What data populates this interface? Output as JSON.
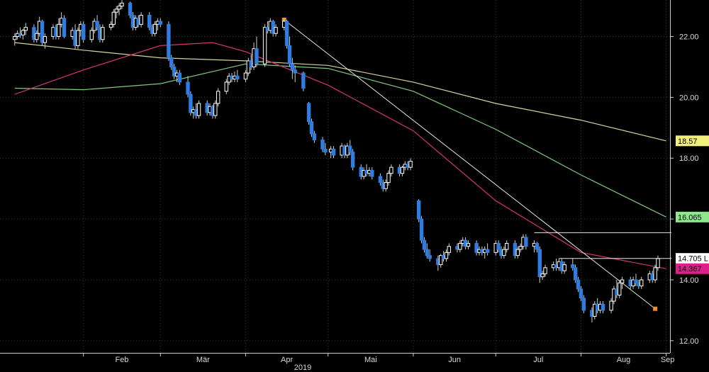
{
  "chart_data": {
    "type": "candlestick",
    "title": "",
    "xlabel": "",
    "ylabel": "",
    "year_label": "2019",
    "ylim": [
      11.6,
      23.2
    ],
    "y_ticks": [
      12.0,
      14.0,
      16.0,
      18.0,
      20.0,
      22.0
    ],
    "y_tick_labels": [
      "12.00",
      "14.00",
      "16.00",
      "18.00",
      "20.00",
      "22.00"
    ],
    "x_tick_labels": [
      "Feb",
      "Mär",
      "Apr",
      "Mai",
      "Jun",
      "Jul",
      "Aug",
      "Sep"
    ],
    "x_ticks": [
      "2019-02-01",
      "2019-03-01",
      "2019-04-01",
      "2019-05-01",
      "2019-06-01",
      "2019-07-01",
      "2019-08-01",
      "2019-09-01"
    ],
    "grid": true,
    "colors": {
      "background": "#000000",
      "grid": "#3a3a3a",
      "up_candle": "#ffffff",
      "down_candle": "#2f7de1",
      "ma_short": "#d6337a",
      "ma_mid": "#7fc97f",
      "ma_long": "#d9d39a",
      "trendline": "#e8e8d8",
      "marker": "#f28c28"
    },
    "price_tags": [
      {
        "label": "18.57",
        "value": 18.57,
        "bg": "#f2f07a"
      },
      {
        "label": "16.065",
        "value": 16.065,
        "bg": "#8ee88e"
      },
      {
        "label": "14.705 L",
        "value": 14.705,
        "bg": "#ffffff"
      },
      {
        "label": "14.367",
        "value": 14.367,
        "bg": "#e0208a"
      }
    ],
    "horizontal_lines": [
      15.55,
      14.705
    ],
    "trendline": {
      "start": [
        "2019-04-15",
        22.55
      ],
      "end": [
        "2019-08-28",
        13.05
      ]
    },
    "markers": [
      {
        "date": "2019-04-15",
        "value": 22.55
      },
      {
        "date": "2019-08-28",
        "value": 13.05
      }
    ],
    "series": [
      {
        "name": "",
        "kind": "ma_long",
        "dates": [
          "2019-01-07",
          "2019-02-01",
          "2019-03-01",
          "2019-04-01",
          "2019-05-01",
          "2019-06-01",
          "2019-07-01",
          "2019-08-01",
          "2019-09-01"
        ],
        "values": [
          21.8,
          21.55,
          21.3,
          21.2,
          21.05,
          20.5,
          19.8,
          19.25,
          18.57
        ]
      },
      {
        "name": "",
        "kind": "ma_mid",
        "dates": [
          "2019-01-07",
          "2019-02-01",
          "2019-03-01",
          "2019-04-01",
          "2019-05-01",
          "2019-06-01",
          "2019-07-01",
          "2019-08-01",
          "2019-09-01"
        ],
        "values": [
          20.3,
          20.25,
          20.45,
          21.1,
          20.95,
          20.2,
          18.95,
          17.45,
          16.065
        ]
      },
      {
        "name": "",
        "kind": "ma_short",
        "dates": [
          "2019-01-07",
          "2019-02-01",
          "2019-03-01",
          "2019-03-20",
          "2019-04-01",
          "2019-05-01",
          "2019-06-01",
          "2019-07-01",
          "2019-08-01",
          "2019-09-01"
        ],
        "values": [
          20.1,
          20.9,
          21.7,
          21.8,
          21.5,
          20.4,
          18.9,
          16.6,
          14.9,
          14.367
        ]
      }
    ],
    "ohlc": [
      [
        "2019-01-07",
        21.9,
        22.1,
        21.7,
        22.0
      ],
      [
        "2019-01-08",
        22.0,
        22.2,
        21.9,
        22.1
      ],
      [
        "2019-01-09",
        22.1,
        22.3,
        21.95,
        22.05
      ],
      [
        "2019-01-10",
        22.05,
        22.25,
        21.9,
        22.2
      ],
      [
        "2019-01-11",
        22.2,
        22.45,
        22.05,
        22.3
      ],
      [
        "2019-01-14",
        22.3,
        22.4,
        21.8,
        21.9
      ],
      [
        "2019-01-15",
        21.9,
        22.2,
        21.8,
        22.1
      ],
      [
        "2019-01-16",
        22.1,
        22.65,
        22.0,
        22.5
      ],
      [
        "2019-01-17",
        22.5,
        22.55,
        21.7,
        21.8
      ],
      [
        "2019-01-18",
        21.8,
        22.1,
        21.6,
        22.0
      ],
      [
        "2019-01-21",
        22.0,
        22.4,
        21.9,
        22.3
      ],
      [
        "2019-01-22",
        22.3,
        22.4,
        21.9,
        22.0
      ],
      [
        "2019-01-23",
        22.0,
        22.6,
        21.9,
        22.4
      ],
      [
        "2019-01-24",
        22.4,
        22.8,
        22.3,
        22.6
      ],
      [
        "2019-01-25",
        22.6,
        22.7,
        21.95,
        22.0
      ],
      [
        "2019-01-28",
        22.0,
        22.3,
        21.9,
        22.2
      ],
      [
        "2019-01-29",
        22.2,
        22.4,
        21.6,
        21.7
      ],
      [
        "2019-01-30",
        21.7,
        22.3,
        21.6,
        22.2
      ],
      [
        "2019-01-31",
        22.2,
        22.5,
        22.0,
        22.4
      ],
      [
        "2019-02-01",
        22.4,
        22.5,
        21.8,
        21.9
      ],
      [
        "2019-02-04",
        21.9,
        22.3,
        21.8,
        22.2
      ],
      [
        "2019-02-05",
        22.2,
        22.6,
        22.1,
        22.5
      ],
      [
        "2019-02-06",
        22.5,
        22.7,
        22.2,
        22.3
      ],
      [
        "2019-02-07",
        22.3,
        22.4,
        21.8,
        21.9
      ],
      [
        "2019-02-08",
        21.9,
        22.4,
        21.8,
        22.3
      ],
      [
        "2019-02-11",
        22.3,
        22.5,
        22.2,
        22.4
      ],
      [
        "2019-02-12",
        22.4,
        22.9,
        22.3,
        22.8
      ],
      [
        "2019-02-13",
        22.8,
        23.0,
        22.6,
        22.9
      ],
      [
        "2019-02-14",
        22.9,
        23.1,
        22.7,
        23.0
      ],
      [
        "2019-02-15",
        23.0,
        23.2,
        22.9,
        23.1
      ],
      [
        "2019-02-18",
        23.1,
        23.15,
        22.6,
        22.7
      ],
      [
        "2019-02-19",
        22.7,
        22.8,
        22.2,
        22.3
      ],
      [
        "2019-02-20",
        22.3,
        22.7,
        22.2,
        22.6
      ],
      [
        "2019-02-21",
        22.6,
        22.7,
        22.3,
        22.4
      ],
      [
        "2019-02-22",
        22.4,
        22.8,
        22.3,
        22.7
      ],
      [
        "2019-02-25",
        22.7,
        22.8,
        22.2,
        22.3
      ],
      [
        "2019-02-26",
        22.3,
        22.4,
        22.0,
        22.1
      ],
      [
        "2019-02-27",
        22.1,
        22.5,
        22.0,
        22.4
      ],
      [
        "2019-02-28",
        22.4,
        22.6,
        22.2,
        22.5
      ],
      [
        "2019-03-01",
        22.5,
        22.6,
        22.3,
        22.4
      ],
      [
        "2019-03-04",
        22.4,
        22.5,
        21.2,
        21.3
      ],
      [
        "2019-03-05",
        21.3,
        21.4,
        20.9,
        21.0
      ],
      [
        "2019-03-06",
        21.0,
        21.1,
        20.6,
        20.7
      ],
      [
        "2019-03-07",
        20.7,
        20.9,
        20.5,
        20.8
      ],
      [
        "2019-03-08",
        20.8,
        20.9,
        20.4,
        20.5
      ],
      [
        "2019-03-11",
        20.5,
        20.7,
        20.0,
        20.1
      ],
      [
        "2019-03-12",
        20.1,
        20.2,
        19.4,
        19.5
      ],
      [
        "2019-03-13",
        19.5,
        19.7,
        19.3,
        19.6
      ],
      [
        "2019-03-14",
        19.6,
        19.8,
        19.3,
        19.4
      ],
      [
        "2019-03-15",
        19.4,
        19.9,
        19.3,
        19.8
      ],
      [
        "2019-03-18",
        19.8,
        19.9,
        19.4,
        19.5
      ],
      [
        "2019-03-19",
        19.5,
        19.8,
        19.4,
        19.7
      ],
      [
        "2019-03-20",
        19.7,
        19.75,
        19.3,
        19.4
      ],
      [
        "2019-03-21",
        19.4,
        19.9,
        19.3,
        19.8
      ],
      [
        "2019-03-22",
        19.8,
        20.3,
        19.7,
        20.2
      ],
      [
        "2019-03-25",
        20.2,
        20.6,
        20.1,
        20.5
      ],
      [
        "2019-03-26",
        20.5,
        20.8,
        20.4,
        20.7
      ],
      [
        "2019-03-27",
        20.7,
        20.8,
        20.5,
        20.6
      ],
      [
        "2019-03-28",
        20.6,
        20.85,
        20.5,
        20.7
      ],
      [
        "2019-03-29",
        20.7,
        20.9,
        20.5,
        20.6
      ],
      [
        "2019-04-01",
        20.6,
        20.9,
        20.5,
        20.8
      ],
      [
        "2019-04-02",
        20.8,
        21.3,
        20.7,
        21.2
      ],
      [
        "2019-04-03",
        21.2,
        21.4,
        20.9,
        21.0
      ],
      [
        "2019-04-04",
        21.0,
        21.8,
        20.9,
        21.6
      ],
      [
        "2019-04-05",
        21.6,
        22.0,
        21.0,
        21.1
      ],
      [
        "2019-04-08",
        21.1,
        22.4,
        21.0,
        22.3
      ],
      [
        "2019-04-09",
        22.3,
        22.5,
        22.1,
        22.2
      ],
      [
        "2019-04-10",
        22.2,
        22.6,
        22.1,
        22.5
      ],
      [
        "2019-04-11",
        22.5,
        22.55,
        22.0,
        22.1
      ],
      [
        "2019-04-12",
        22.1,
        22.4,
        22.0,
        22.3
      ],
      [
        "2019-04-15",
        22.3,
        22.6,
        22.2,
        22.5
      ],
      [
        "2019-04-16",
        22.5,
        22.55,
        21.6,
        21.7
      ],
      [
        "2019-04-17",
        21.7,
        22.0,
        21.0,
        21.1
      ],
      [
        "2019-04-18",
        21.1,
        21.3,
        20.6,
        20.9
      ],
      [
        "2019-04-19",
        20.9,
        21.05,
        20.5,
        20.8
      ],
      [
        "2019-04-22",
        20.8,
        20.85,
        20.2,
        20.3
      ],
      [
        "2019-04-24",
        19.8,
        19.85,
        19.1,
        19.2
      ],
      [
        "2019-04-25",
        19.2,
        19.3,
        18.7,
        18.8
      ],
      [
        "2019-04-26",
        18.8,
        18.9,
        18.5,
        18.6
      ],
      [
        "2019-04-29",
        18.6,
        18.7,
        18.2,
        18.3
      ],
      [
        "2019-04-30",
        18.3,
        18.5,
        18.1,
        18.2
      ],
      [
        "2019-05-02",
        18.2,
        18.4,
        18.0,
        18.3
      ],
      [
        "2019-05-03",
        18.3,
        18.4,
        18.0,
        18.1
      ],
      [
        "2019-05-06",
        18.1,
        18.5,
        18.0,
        18.4
      ],
      [
        "2019-05-07",
        18.4,
        18.45,
        18.0,
        18.1
      ],
      [
        "2019-05-08",
        18.1,
        18.5,
        18.0,
        18.4
      ],
      [
        "2019-05-09",
        18.4,
        18.6,
        18.1,
        18.2
      ],
      [
        "2019-05-10",
        18.2,
        18.3,
        17.6,
        17.7
      ],
      [
        "2019-05-13",
        17.7,
        17.8,
        17.3,
        17.4
      ],
      [
        "2019-05-14",
        17.4,
        17.7,
        17.3,
        17.6
      ],
      [
        "2019-05-15",
        17.6,
        17.8,
        17.4,
        17.5
      ],
      [
        "2019-05-16",
        17.5,
        17.7,
        17.4,
        17.6
      ],
      [
        "2019-05-17",
        17.6,
        17.7,
        17.3,
        17.4
      ],
      [
        "2019-05-20",
        17.4,
        17.5,
        17.1,
        17.2
      ],
      [
        "2019-05-21",
        17.2,
        17.3,
        16.9,
        17.0
      ],
      [
        "2019-05-22",
        17.0,
        17.3,
        16.9,
        17.2
      ],
      [
        "2019-05-23",
        17.2,
        17.6,
        17.1,
        17.5
      ],
      [
        "2019-05-24",
        17.5,
        17.8,
        17.4,
        17.7
      ],
      [
        "2019-05-27",
        17.7,
        17.8,
        17.4,
        17.5
      ],
      [
        "2019-05-28",
        17.5,
        17.75,
        17.4,
        17.7
      ],
      [
        "2019-05-29",
        17.7,
        17.9,
        17.6,
        17.8
      ],
      [
        "2019-05-30",
        17.8,
        17.9,
        17.6,
        17.7
      ],
      [
        "2019-05-31",
        17.7,
        18.0,
        17.6,
        17.9
      ],
      [
        "2019-06-03",
        16.6,
        16.65,
        15.9,
        16.0
      ],
      [
        "2019-06-04",
        16.0,
        16.1,
        15.2,
        15.3
      ],
      [
        "2019-06-05",
        15.3,
        15.4,
        14.9,
        15.0
      ],
      [
        "2019-06-06",
        15.0,
        15.2,
        14.7,
        14.8
      ],
      [
        "2019-06-07",
        14.8,
        15.0,
        14.6,
        14.7
      ],
      [
        "2019-06-10",
        14.7,
        14.8,
        14.3,
        14.5
      ],
      [
        "2019-06-11",
        14.5,
        14.85,
        14.4,
        14.8
      ],
      [
        "2019-06-12",
        14.8,
        14.95,
        14.6,
        14.7
      ],
      [
        "2019-06-13",
        14.7,
        15.0,
        14.6,
        14.9
      ],
      [
        "2019-06-14",
        14.9,
        15.2,
        14.8,
        15.1
      ],
      [
        "2019-06-17",
        15.1,
        15.2,
        14.9,
        15.0
      ],
      [
        "2019-06-18",
        15.0,
        15.3,
        14.9,
        15.2
      ],
      [
        "2019-06-19",
        15.2,
        15.4,
        15.1,
        15.3
      ],
      [
        "2019-06-20",
        15.3,
        15.4,
        15.0,
        15.1
      ],
      [
        "2019-06-21",
        15.1,
        15.3,
        15.0,
        15.2
      ],
      [
        "2019-06-24",
        15.2,
        15.3,
        14.8,
        14.9
      ],
      [
        "2019-06-25",
        14.9,
        15.1,
        14.8,
        15.0
      ],
      [
        "2019-06-26",
        15.0,
        15.1,
        14.8,
        14.9
      ],
      [
        "2019-06-27",
        14.9,
        15.1,
        14.7,
        15.0
      ],
      [
        "2019-06-28",
        15.0,
        15.2,
        14.8,
        14.9
      ],
      [
        "2019-07-01",
        14.9,
        15.3,
        14.8,
        15.2
      ],
      [
        "2019-07-02",
        15.2,
        15.3,
        14.9,
        15.0
      ],
      [
        "2019-07-03",
        15.0,
        15.1,
        14.7,
        14.8
      ],
      [
        "2019-07-04",
        14.8,
        15.1,
        14.7,
        15.0
      ],
      [
        "2019-07-05",
        15.0,
        15.3,
        14.9,
        15.2
      ],
      [
        "2019-07-08",
        15.2,
        15.3,
        14.7,
        14.8
      ],
      [
        "2019-07-09",
        14.8,
        15.1,
        14.7,
        15.0
      ],
      [
        "2019-07-10",
        15.0,
        15.2,
        14.9,
        15.1
      ],
      [
        "2019-07-11",
        15.1,
        15.5,
        15.0,
        15.4
      ],
      [
        "2019-07-12",
        15.4,
        15.5,
        15.0,
        15.1
      ],
      [
        "2019-07-15",
        15.1,
        15.3,
        14.9,
        15.2
      ],
      [
        "2019-07-16",
        15.2,
        15.25,
        14.9,
        15.0
      ],
      [
        "2019-07-17",
        15.0,
        15.1,
        13.9,
        14.1
      ],
      [
        "2019-07-18",
        14.1,
        14.3,
        14.0,
        14.2
      ],
      [
        "2019-07-19",
        14.2,
        14.5,
        14.1,
        14.4
      ],
      [
        "2019-07-22",
        14.4,
        14.6,
        14.3,
        14.5
      ],
      [
        "2019-07-23",
        14.5,
        14.7,
        14.3,
        14.4
      ],
      [
        "2019-07-24",
        14.4,
        14.7,
        14.3,
        14.6
      ],
      [
        "2019-07-25",
        14.6,
        14.7,
        14.2,
        14.3
      ],
      [
        "2019-07-26",
        14.3,
        14.6,
        14.2,
        14.5
      ],
      [
        "2019-07-29",
        14.5,
        14.7,
        14.3,
        14.4
      ],
      [
        "2019-07-30",
        14.4,
        14.5,
        13.9,
        14.0
      ],
      [
        "2019-07-31",
        14.0,
        14.1,
        13.6,
        13.7
      ],
      [
        "2019-08-01",
        13.7,
        13.8,
        13.3,
        13.4
      ],
      [
        "2019-08-02",
        13.4,
        13.5,
        12.9,
        13.0
      ],
      [
        "2019-08-05",
        13.0,
        13.1,
        12.6,
        12.8
      ],
      [
        "2019-08-06",
        12.8,
        13.3,
        12.7,
        13.2
      ],
      [
        "2019-08-07",
        13.2,
        13.4,
        12.9,
        13.0
      ],
      [
        "2019-08-08",
        13.0,
        13.3,
        12.9,
        13.2
      ],
      [
        "2019-08-09",
        13.2,
        13.3,
        12.9,
        13.0
      ],
      [
        "2019-08-12",
        13.0,
        13.4,
        12.9,
        13.3
      ],
      [
        "2019-08-13",
        13.3,
        13.8,
        13.2,
        13.7
      ],
      [
        "2019-08-14",
        13.7,
        14.0,
        13.4,
        13.5
      ],
      [
        "2019-08-15",
        13.5,
        14.0,
        13.4,
        13.9
      ],
      [
        "2019-08-16",
        13.9,
        14.1,
        13.7,
        14.0
      ],
      [
        "2019-08-19",
        14.0,
        14.1,
        13.7,
        13.8
      ],
      [
        "2019-08-20",
        13.8,
        14.1,
        13.7,
        14.0
      ],
      [
        "2019-08-21",
        14.0,
        14.2,
        13.8,
        13.9
      ],
      [
        "2019-08-22",
        13.9,
        14.0,
        13.7,
        13.8
      ],
      [
        "2019-08-23",
        13.8,
        14.1,
        13.7,
        14.0
      ],
      [
        "2019-08-26",
        14.0,
        14.3,
        13.9,
        14.2
      ],
      [
        "2019-08-27",
        14.2,
        14.3,
        13.9,
        14.0
      ],
      [
        "2019-08-28",
        14.0,
        14.5,
        13.9,
        14.4
      ],
      [
        "2019-08-29",
        14.4,
        14.8,
        14.3,
        14.7
      ]
    ]
  }
}
